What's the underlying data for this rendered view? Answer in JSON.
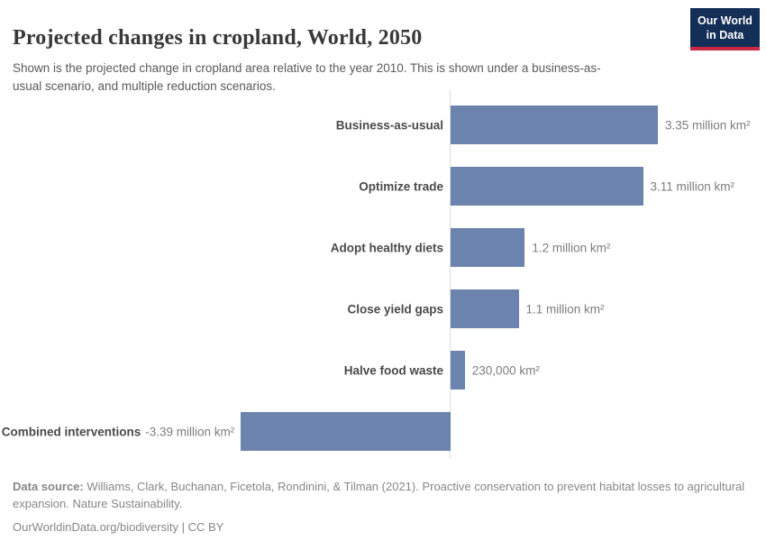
{
  "header": {
    "title": "Projected changes in cropland, World, 2050",
    "subtitle": "Shown is the projected change in cropland area relative to the year 2010. This is shown under a business-as-usual scenario, and multiple reduction scenarios."
  },
  "logo": {
    "line1": "Our World",
    "line2": "in Data",
    "background_color": "#132e57",
    "stripe_color": "#c92a41"
  },
  "chart_data": {
    "type": "bar",
    "orientation": "horizontal",
    "title": "Projected changes in cropland, World, 2050",
    "unit": "million km²",
    "bar_color": "#6c84ad",
    "axis_color": "#dddddd",
    "xlim_million_km2": [
      -3.39,
      3.35
    ],
    "zero_line": true,
    "grid": false,
    "legend": "none",
    "categories": [
      "Business-as-usual",
      "Optimize trade",
      "Adopt healthy diets",
      "Close yield gaps",
      "Halve food waste",
      "Combined interventions"
    ],
    "values": [
      3.35,
      3.11,
      1.2,
      1.1,
      0.23,
      -3.39
    ],
    "rows": [
      {
        "label": "Business-as-usual",
        "value": 3.35,
        "value_label": "3.35 million km²"
      },
      {
        "label": "Optimize trade",
        "value": 3.11,
        "value_label": "3.11 million km²"
      },
      {
        "label": "Adopt healthy diets",
        "value": 1.2,
        "value_label": "1.2 million km²"
      },
      {
        "label": "Close yield gaps",
        "value": 1.1,
        "value_label": "1.1 million km²"
      },
      {
        "label": "Halve food waste",
        "value": 0.23,
        "value_label": "230,000 km²"
      },
      {
        "label": "Combined interventions",
        "value": -3.39,
        "value_label": "-3.39 million km²"
      }
    ]
  },
  "footer": {
    "source_label": "Data source:",
    "source_text": " Williams, Clark, Buchanan, Ficetola, Rondinini, & Tilman (2021). Proactive conservation to prevent habitat losses to agricultural expansion. Nature Sustainability.",
    "link_line": "OurWorldinData.org/biodiversity | CC BY"
  }
}
